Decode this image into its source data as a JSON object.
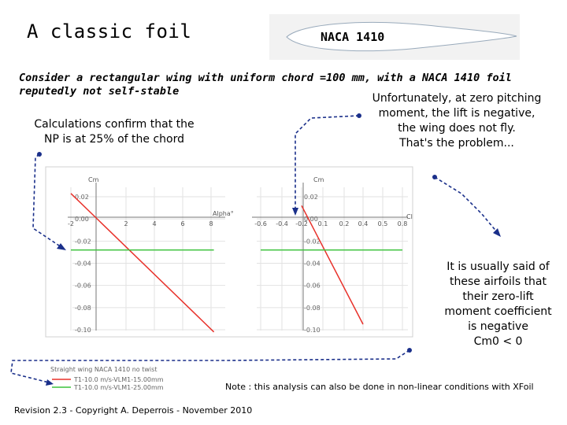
{
  "slide": {
    "title": "A classic foil",
    "foil_label": "NACA 1410",
    "intro_line1": "Consider a rectangular wing with uniform chord =100 mm, with a NACA 1410 foil",
    "intro_line2": "reputedly not self-stable",
    "unfortunately": [
      "Unfortunately, at zero pitching",
      "moment, the lift is negative,",
      "the wing does not fly.",
      "That's the problem..."
    ],
    "calculations": [
      "Calculations confirm that the",
      "NP is at 25% of the chord"
    ],
    "usually": [
      "It is usually said of",
      "these airfoils that",
      "their zero-lift",
      "moment coefficient",
      "is negative",
      "Cm0 < 0"
    ],
    "note": "Note : this analysis can also be done in non-linear conditions with XFoil",
    "revision": "Revision 2.3 - Copyright A. Deperrois - November 2010"
  },
  "colors": {
    "red": "#e8312a",
    "green": "#3cc23c",
    "arrow": "#1a2f8a",
    "grid": "#c8c8c8"
  },
  "chart_data": [
    {
      "type": "line",
      "ylabel": "Cm",
      "xlabel": "Alpha°",
      "x_ticks": [
        "-2",
        "2",
        "4",
        "6",
        "8"
      ],
      "y_ticks": [
        "0.02",
        "0.00",
        "-0.02",
        "-0.04",
        "-0.06",
        "-0.08",
        "-0.10"
      ],
      "series": [
        {
          "color": "red",
          "x": [
            -2,
            8.2
          ],
          "y": [
            0.023,
            -0.102
          ]
        },
        {
          "color": "green",
          "x": [
            -2,
            8.2
          ],
          "y": [
            -0.028,
            -0.028
          ]
        }
      ]
    },
    {
      "type": "line",
      "ylabel": "Cm",
      "xlabel": "Cl",
      "x_ticks": [
        "-0.6",
        "-0.4",
        "-0.2",
        "0.1",
        "0.2",
        "0.4",
        "0.5",
        "0.8"
      ],
      "y_ticks": [
        "0.02",
        "0.00",
        "-0.02",
        "-0.04",
        "-0.06",
        "-0.08",
        "-0.10"
      ],
      "series": [
        {
          "color": "red",
          "x": [
            -0.2,
            0.4
          ],
          "y": [
            0.012,
            -0.095
          ]
        },
        {
          "color": "green",
          "x": [
            -0.6,
            0.8
          ],
          "y": [
            -0.028,
            -0.028
          ]
        }
      ]
    }
  ],
  "legend": {
    "title": "Straight wing NACA 1410 no twist",
    "items": [
      "T1-10.0 m/s-VLM1-15.00mm",
      "T1-10.0 m/s-VLM1-25.00mm"
    ]
  }
}
